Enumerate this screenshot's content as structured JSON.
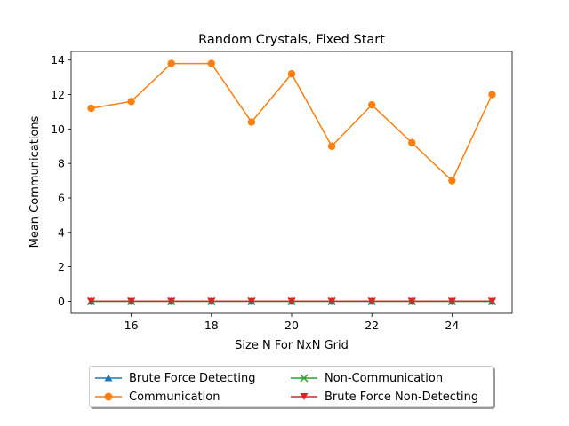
{
  "chart_data": {
    "type": "line",
    "title": "Random Crystals, Fixed Start",
    "xlabel": "Size N For NxN Grid",
    "ylabel": "Mean Communications",
    "x": [
      15,
      16,
      17,
      18,
      19,
      20,
      21,
      22,
      23,
      24,
      25
    ],
    "xlim": [
      14.5,
      25.5
    ],
    "ylim": [
      -0.7,
      14.5
    ],
    "xticks": [
      16,
      18,
      20,
      22,
      24
    ],
    "yticks": [
      0,
      2,
      4,
      6,
      8,
      10,
      12,
      14
    ],
    "grid": false,
    "legend_position": "below",
    "series": [
      {
        "name": "Brute Force Detecting",
        "color": "#1f77b4",
        "marker": "triangle-up",
        "values": [
          0,
          0,
          0,
          0,
          0,
          0,
          0,
          0,
          0,
          0,
          0
        ]
      },
      {
        "name": "Communication",
        "color": "#ff7f0e",
        "marker": "circle",
        "values": [
          11.2,
          11.6,
          13.8,
          13.8,
          10.4,
          13.2,
          9.0,
          11.4,
          9.2,
          7.0,
          12.0
        ]
      },
      {
        "name": "Non-Communication",
        "color": "#2ca02c",
        "marker": "x",
        "values": [
          0,
          0,
          0,
          0,
          0,
          0,
          0,
          0,
          0,
          0,
          0
        ]
      },
      {
        "name": "Brute Force Non-Detecting",
        "color": "#d62728",
        "marker": "triangle-down",
        "values": [
          0,
          0,
          0,
          0,
          0,
          0,
          0,
          0,
          0,
          0,
          0
        ]
      }
    ]
  }
}
